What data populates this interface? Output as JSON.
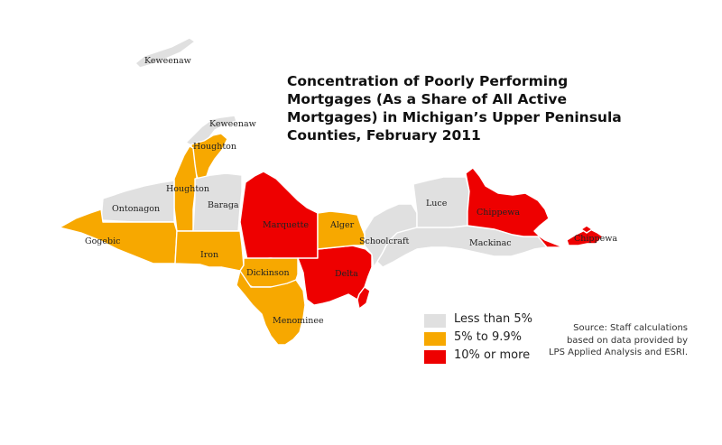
{
  "title": {
    "lines": [
      "Concentration of Poorly Performing",
      "Mortgages (As a Share of All Active",
      "Mortgages) in Michigan’s Upper Peninsula",
      "Counties, February 2011"
    ]
  },
  "colors": {
    "less_than_5": "#e0e0e0",
    "five_to_9_9": "#f7a800",
    "ten_or_more": "#ee0000"
  },
  "legend": [
    {
      "label": "Less than 5%",
      "category": "less_than_5"
    },
    {
      "label": "5% to 9.9%",
      "category": "five_to_9_9"
    },
    {
      "label": "10% or more",
      "category": "ten_or_more"
    }
  ],
  "source": {
    "lines": [
      "Source: Staff calculations",
      "based on data provided by",
      "LPS Applied Analysis and ESRI."
    ]
  },
  "counties": [
    {
      "id": "keweenaw-isle",
      "name": "Keweenaw",
      "category": "less_than_5"
    },
    {
      "id": "keweenaw",
      "name": "Keweenaw",
      "category": "less_than_5"
    },
    {
      "id": "houghton-north",
      "name": "Houghton",
      "category": "five_to_9_9"
    },
    {
      "id": "houghton",
      "name": "Houghton",
      "category": "five_to_9_9"
    },
    {
      "id": "ontonagon",
      "name": "Ontonagon",
      "category": "less_than_5"
    },
    {
      "id": "baraga",
      "name": "Baraga",
      "category": "less_than_5"
    },
    {
      "id": "gogebic",
      "name": "Gogebic",
      "category": "five_to_9_9"
    },
    {
      "id": "iron",
      "name": "Iron",
      "category": "five_to_9_9"
    },
    {
      "id": "marquette",
      "name": "Marquette",
      "category": "ten_or_more"
    },
    {
      "id": "dickinson",
      "name": "Dickinson",
      "category": "five_to_9_9"
    },
    {
      "id": "menominee",
      "name": "Menominee",
      "category": "five_to_9_9"
    },
    {
      "id": "delta",
      "name": "Delta",
      "category": "ten_or_more"
    },
    {
      "id": "alger",
      "name": "Alger",
      "category": "five_to_9_9"
    },
    {
      "id": "schoolcraft",
      "name": "Schoolcraft",
      "category": "less_than_5"
    },
    {
      "id": "luce",
      "name": "Luce",
      "category": "less_than_5"
    },
    {
      "id": "mackinac",
      "name": "Mackinac",
      "category": "less_than_5"
    },
    {
      "id": "chippewa",
      "name": "Chippewa",
      "category": "ten_or_more"
    },
    {
      "id": "chippewa-island",
      "name": "Chippewa",
      "category": "ten_or_more"
    }
  ]
}
